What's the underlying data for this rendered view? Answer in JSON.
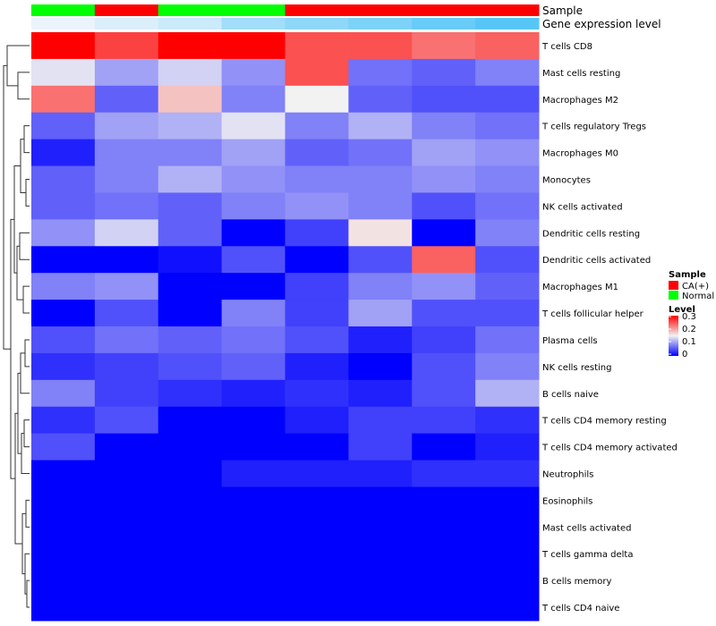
{
  "chart_data": {
    "type": "heatmap",
    "title": "",
    "annotation_tracks": [
      {
        "name": "Sample",
        "values": [
          "Normal",
          "CA(+)",
          "Normal",
          "Normal",
          "CA(+)",
          "CA(+)",
          "CA(+)",
          "CA(+)"
        ],
        "colors": {
          "CA(+)": "#ff0000",
          "Normal": "#00ff00"
        }
      },
      {
        "name": "Gene expression level",
        "values": [
          0.05,
          0.15,
          0.25,
          0.5,
          0.62,
          0.72,
          0.85,
          0.95
        ],
        "color_low": "#f4f7fb",
        "color_high": "#4fc3f7"
      }
    ],
    "rows": [
      "T cells CD8",
      "Mast cells resting",
      "Macrophages M2",
      "T cells regulatory  Tregs",
      "Macrophages M0",
      "Monocytes",
      "NK cells activated",
      "Dendritic cells resting",
      "Dendritic cells activated",
      "Macrophages M1",
      "T cells follicular helper",
      "Plasma cells",
      "NK cells resting",
      "B cells naive",
      "T cells CD4 memory resting",
      "T cells CD4 memory activated",
      "Neutrophils",
      "Eosinophils",
      "Mast cells activated",
      "T cells gamma delta",
      "B cells memory",
      "T cells CD4 naive"
    ],
    "values": [
      [
        0.3,
        0.26,
        0.3,
        0.3,
        0.25,
        0.25,
        0.23,
        0.24
      ],
      [
        0.14,
        0.1,
        0.13,
        0.09,
        0.25,
        0.07,
        0.06,
        0.08
      ],
      [
        0.23,
        0.06,
        0.18,
        0.08,
        0.15,
        0.06,
        0.05,
        0.05
      ],
      [
        0.06,
        0.1,
        0.11,
        0.14,
        0.08,
        0.11,
        0.08,
        0.07
      ],
      [
        0.02,
        0.08,
        0.08,
        0.1,
        0.06,
        0.07,
        0.1,
        0.09
      ],
      [
        0.06,
        0.08,
        0.11,
        0.09,
        0.08,
        0.08,
        0.09,
        0.08
      ],
      [
        0.06,
        0.07,
        0.06,
        0.08,
        0.09,
        0.08,
        0.05,
        0.07
      ],
      [
        0.09,
        0.13,
        0.06,
        0.0,
        0.04,
        0.16,
        0.0,
        0.08
      ],
      [
        0.0,
        0.0,
        0.01,
        0.05,
        0.0,
        0.05,
        0.24,
        0.05
      ],
      [
        0.08,
        0.09,
        0.0,
        0.0,
        0.04,
        0.08,
        0.09,
        0.06
      ],
      [
        0.0,
        0.05,
        0.0,
        0.08,
        0.04,
        0.1,
        0.05,
        0.05
      ],
      [
        0.05,
        0.07,
        0.06,
        0.07,
        0.05,
        0.02,
        0.04,
        0.07
      ],
      [
        0.03,
        0.04,
        0.05,
        0.06,
        0.02,
        0.0,
        0.05,
        0.08
      ],
      [
        0.08,
        0.04,
        0.03,
        0.02,
        0.03,
        0.02,
        0.05,
        0.11
      ],
      [
        0.03,
        0.05,
        0.0,
        0.0,
        0.02,
        0.04,
        0.04,
        0.03
      ],
      [
        0.05,
        0.0,
        0.0,
        0.0,
        0.0,
        0.04,
        0.0,
        0.02
      ],
      [
        0.0,
        0.0,
        0.0,
        0.02,
        0.02,
        0.02,
        0.03,
        0.03
      ],
      [
        0.0,
        0.0,
        0.0,
        0.0,
        0.0,
        0.0,
        0.0,
        0.0
      ],
      [
        0.0,
        0.0,
        0.0,
        0.0,
        0.0,
        0.0,
        0.0,
        0.0
      ],
      [
        0.0,
        0.0,
        0.0,
        0.0,
        0.0,
        0.0,
        0.0,
        0.0
      ],
      [
        0.0,
        0.0,
        0.0,
        0.0,
        0.0,
        0.0,
        0.0,
        0.0
      ],
      [
        0.0,
        0.0,
        0.0,
        0.0,
        0.0,
        0.0,
        0.0,
        0.0
      ]
    ],
    "color_scale": {
      "min": 0,
      "max": 0.3,
      "low_color": "#0000ff",
      "mid_color": "#f2f2f2",
      "high_color": "#ff0000",
      "mid_value": 0.15
    },
    "legend": {
      "sample_title": "Sample",
      "sample_entries": [
        {
          "label": "CA(+)",
          "color": "#ff0000"
        },
        {
          "label": "Normal",
          "color": "#00ff00"
        }
      ],
      "level_title": "Level",
      "level_ticks": [
        "0.3",
        "0.2",
        "0.1",
        "0"
      ],
      "placement": "right"
    },
    "row_dendrogram": true
  }
}
